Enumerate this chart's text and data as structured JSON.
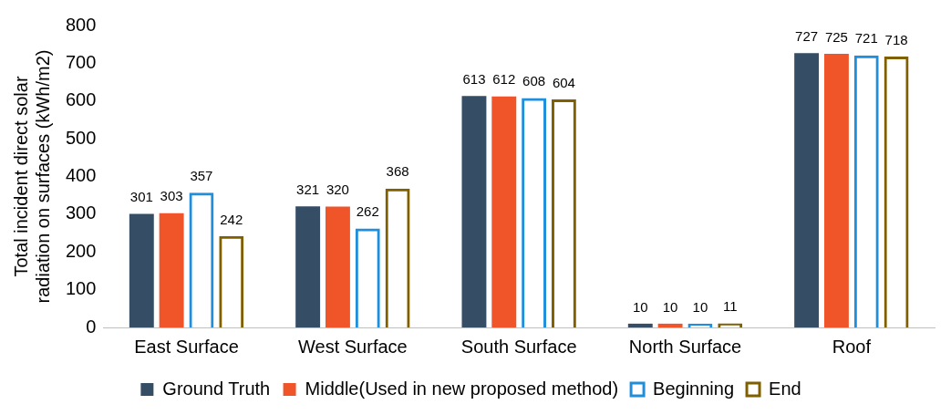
{
  "chart_data": {
    "type": "bar",
    "ylabel": "Total incident direct solar radiation on surfaces (kWh/m2)",
    "categories": [
      "East Surface",
      "West Surface",
      "South Surface",
      "North Surface",
      "Roof"
    ],
    "series": [
      {
        "name": "Ground Truth",
        "color": "#354e66",
        "values": [
          301,
          321,
          613,
          10,
          727
        ]
      },
      {
        "name": "Middle(Used in new proposed method)",
        "color": "#f0552a",
        "values": [
          303,
          320,
          612,
          10,
          725
        ]
      },
      {
        "name": "Beginning",
        "color": "#1f8fdc",
        "values": [
          357,
          262,
          608,
          10,
          721
        ]
      },
      {
        "name": "End",
        "color": "#7f5f00",
        "values": [
          242,
          368,
          604,
          11,
          718
        ]
      }
    ],
    "ylim": [
      0,
      800
    ],
    "yticks": [
      0,
      100,
      200,
      300,
      400,
      500,
      600,
      700,
      800
    ],
    "grid": false,
    "legend": "bottom",
    "data_labels": true
  }
}
